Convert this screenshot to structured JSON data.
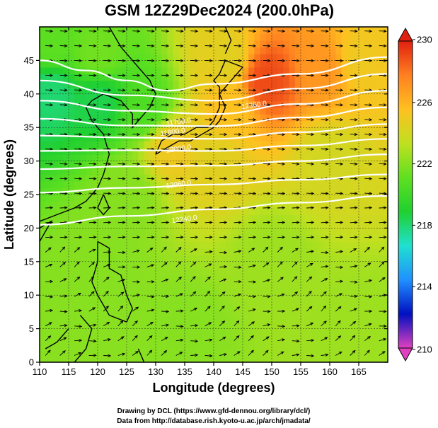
{
  "chart_data": {
    "type": "heatmap",
    "title": "GSM 12Z29Dec2024 (200.0hPa)",
    "xlabel": "Longitude (degrees)",
    "ylabel": "Latitude  (degrees)",
    "xlim": [
      110,
      170
    ],
    "ylim": [
      0,
      50
    ],
    "xticks": [
      110,
      115,
      120,
      125,
      130,
      135,
      140,
      145,
      150,
      155,
      160,
      165
    ],
    "yticks": [
      0,
      5,
      10,
      15,
      20,
      25,
      30,
      35,
      40,
      45
    ],
    "grid": true,
    "colorbar": {
      "min": 210,
      "max": 230,
      "ticks": [
        210,
        214,
        218,
        222,
        226,
        230
      ],
      "colors": [
        "#e040c0",
        "#0010c0",
        "#2090ff",
        "#20e0d0",
        "#20d030",
        "#60e020",
        "#c0e020",
        "#ffc020",
        "#ff8020",
        "#e02010"
      ]
    },
    "field_samples": [
      {
        "lon": 112,
        "lat": 40,
        "value": 218.0
      },
      {
        "lon": 120,
        "lat": 39,
        "value": 218.5
      },
      {
        "lon": 128,
        "lat": 38,
        "value": 220.5
      },
      {
        "lon": 133,
        "lat": 32,
        "value": 225.0
      },
      {
        "lon": 140,
        "lat": 30,
        "value": 224.5
      },
      {
        "lon": 143,
        "lat": 38,
        "value": 225.5
      },
      {
        "lon": 149,
        "lat": 42,
        "value": 229.0
      },
      {
        "lon": 159,
        "lat": 44,
        "value": 227.0
      },
      {
        "lon": 142,
        "lat": 45,
        "value": 224.5
      },
      {
        "lon": 165,
        "lat": 45,
        "value": 225.0
      },
      {
        "lon": 160,
        "lat": 30,
        "value": 224.0
      },
      {
        "lon": 125,
        "lat": 25,
        "value": 222.0
      },
      {
        "lon": 120,
        "lat": 15,
        "value": 222.0
      },
      {
        "lon": 150,
        "lat": 15,
        "value": 222.5
      },
      {
        "lon": 135,
        "lat": 5,
        "value": 222.0
      },
      {
        "lon": 165,
        "lat": 5,
        "value": 222.5
      },
      {
        "lon": 112,
        "lat": 48,
        "value": 221.0
      },
      {
        "lon": 120,
        "lat": 46,
        "value": 221.5
      }
    ],
    "contours": [
      {
        "level": 12000.0,
        "points": [
          [
            110,
            20.5
          ],
          [
            125,
            21.8
          ],
          [
            140,
            22.8
          ],
          [
            155,
            23.8
          ],
          [
            170,
            24.8
          ]
        ]
      },
      {
        "level": 12060.0,
        "points": [
          [
            110,
            25.3
          ],
          [
            125,
            26.0
          ],
          [
            140,
            26.5
          ],
          [
            155,
            27.2
          ],
          [
            170,
            28.0
          ]
        ]
      },
      {
        "level": 12120.0,
        "points": [
          [
            110,
            28.8
          ],
          [
            125,
            29.2
          ],
          [
            140,
            29.3
          ],
          [
            155,
            30.0
          ],
          [
            170,
            31.0
          ]
        ]
      },
      {
        "level": 12180.0,
        "points": [
          [
            110,
            31.5
          ],
          [
            125,
            31.6
          ],
          [
            140,
            31.5
          ],
          [
            155,
            32.3
          ],
          [
            170,
            33.3
          ]
        ]
      },
      {
        "level": 12240.0,
        "points": [
          [
            110,
            33.8
          ],
          [
            125,
            33.5
          ],
          [
            140,
            33.3
          ],
          [
            155,
            34.3
          ],
          [
            170,
            35.5
          ]
        ]
      },
      {
        "level": 12300.0,
        "points": [
          [
            110,
            36.3
          ],
          [
            125,
            35.3
          ],
          [
            140,
            35.2
          ],
          [
            155,
            36.5
          ],
          [
            170,
            38.0
          ]
        ]
      },
      {
        "level": 12360.0,
        "points": [
          [
            110,
            39.0
          ],
          [
            125,
            37.5
          ],
          [
            140,
            37.0
          ],
          [
            155,
            38.5
          ],
          [
            170,
            40.5
          ]
        ]
      },
      {
        "level": 12420.0,
        "points": [
          [
            110,
            42.0
          ],
          [
            125,
            39.8
          ],
          [
            140,
            39.0
          ],
          [
            155,
            40.8
          ],
          [
            170,
            43.0
          ]
        ]
      },
      {
        "level": 12480.0,
        "points": [
          [
            110,
            45.0
          ],
          [
            118,
            43.5
          ],
          [
            125,
            42.0
          ],
          [
            132,
            40.5
          ],
          [
            140,
            41.5
          ],
          [
            155,
            43.0
          ],
          [
            170,
            45.5
          ]
        ]
      }
    ],
    "contour_labels": [
      "11700.0",
      "11800.0",
      "12000.0",
      "12060.0",
      "12240.0",
      "12360.0"
    ],
    "wind_regimes": [
      {
        "lat_min": 25,
        "lat_max": 50,
        "u": 1.0,
        "v": -0.05
      },
      {
        "lat_min": 18,
        "lat_max": 25,
        "u": 1.0,
        "v": 0.05
      },
      {
        "lat_min": 0,
        "lat_max": 18,
        "u": 0.7,
        "v": 0.35
      }
    ]
  },
  "credits": {
    "line1": "Drawing by DCL (https://www.gfd-dennou.org/library/dcl/)",
    "line2": "Data from http://database.rish.kyoto-u.ac.jp/arch/jmadata/"
  }
}
